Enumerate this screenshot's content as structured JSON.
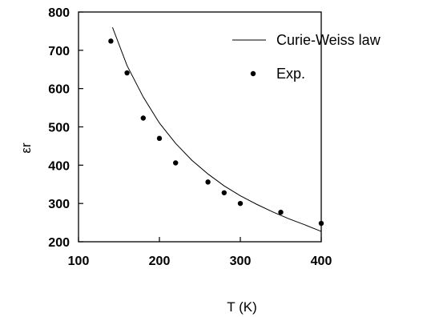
{
  "chart_data": {
    "type": "scatter",
    "xlabel": "T (K)",
    "ylabel": "εr",
    "xlim": [
      100,
      400
    ],
    "ylim": [
      200,
      800
    ],
    "x_ticks": [
      100,
      200,
      300,
      400
    ],
    "y_ticks": [
      200,
      300,
      400,
      500,
      600,
      700,
      800
    ],
    "grid": false,
    "legend_position": "top-right",
    "series": [
      {
        "name": "Curie-Weiss law",
        "kind": "line",
        "x": [
          142,
          160,
          180,
          200,
          220,
          240,
          260,
          280,
          300,
          320,
          340,
          360,
          380,
          400
        ],
        "y": [
          760,
          660,
          578,
          510,
          457,
          413,
          377,
          346,
          320,
          298,
          278,
          260,
          244,
          227
        ]
      },
      {
        "name": "Exp.",
        "kind": "scatter",
        "x": [
          140,
          160,
          180,
          200,
          220,
          260,
          280,
          300,
          350,
          400
        ],
        "y": [
          724,
          641,
          523,
          470,
          406,
          356,
          328,
          300,
          277,
          248
        ]
      }
    ]
  }
}
